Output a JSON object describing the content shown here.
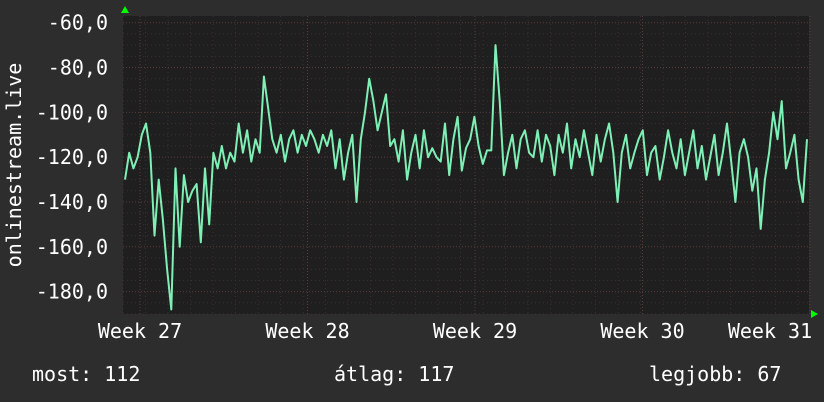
{
  "chart_data": {
    "type": "line",
    "ylabel": "onlinestream.live",
    "ylim": [
      -190,
      -57
    ],
    "y_ticks": [
      -60,
      -80,
      -100,
      -120,
      -140,
      -160,
      -180
    ],
    "y_tick_labels": [
      "-60,0",
      "-80,0",
      "-100,0",
      "-120,0",
      "-140,0",
      "-160,0",
      "-180,0"
    ],
    "x_ticks": [
      "Week 27",
      "Week 28",
      "Week 29",
      "Week 30",
      "Week 31"
    ],
    "grid": true,
    "colors": {
      "background": "#2d2d2d",
      "plot": "#1f1f1f",
      "line": "#7ef0b6",
      "grid": "#5a3a3a",
      "arrow": "#00ff00"
    },
    "series": [
      {
        "values": [
          -130,
          -118,
          -125,
          -120,
          -110,
          -105,
          -118,
          -155,
          -130,
          -148,
          -170,
          -188,
          -125,
          -160,
          -128,
          -140,
          -135,
          -132,
          -158,
          -125,
          -150,
          -118,
          -125,
          -115,
          -125,
          -118,
          -122,
          -105,
          -118,
          -108,
          -122,
          -112,
          -118,
          -84,
          -98,
          -112,
          -118,
          -110,
          -122,
          -112,
          -108,
          -118,
          -110,
          -115,
          -108,
          -112,
          -118,
          -110,
          -115,
          -108,
          -125,
          -112,
          -130,
          -118,
          -110,
          -140,
          -112,
          -100,
          -85,
          -95,
          -108,
          -100,
          -92,
          -115,
          -112,
          -122,
          -108,
          -130,
          -118,
          -110,
          -125,
          -108,
          -120,
          -116,
          -120,
          -122,
          -105,
          -128,
          -112,
          -102,
          -126,
          -116,
          -112,
          -102,
          -115,
          -123,
          -117,
          -117,
          -70,
          -95,
          -128,
          -118,
          -110,
          -125,
          -112,
          -108,
          -118,
          -120,
          -108,
          -122,
          -110,
          -115,
          -128,
          -110,
          -118,
          -105,
          -125,
          -112,
          -120,
          -108,
          -118,
          -128,
          -110,
          -122,
          -112,
          -105,
          -118,
          -140,
          -118,
          -110,
          -125,
          -118,
          -112,
          -108,
          -128,
          -118,
          -115,
          -130,
          -120,
          -108,
          -118,
          -125,
          -112,
          -128,
          -118,
          -108,
          -125,
          -115,
          -130,
          -120,
          -110,
          -128,
          -118,
          -105,
          -122,
          -140,
          -118,
          -112,
          -120,
          -135,
          -125,
          -152,
          -130,
          -118,
          -100,
          -112,
          -95,
          -125,
          -118,
          -110,
          -130,
          -140,
          -112
        ]
      }
    ]
  },
  "footer": {
    "now": "most: 112",
    "avg": "átlag: 117",
    "best": "legjobb: 67"
  }
}
